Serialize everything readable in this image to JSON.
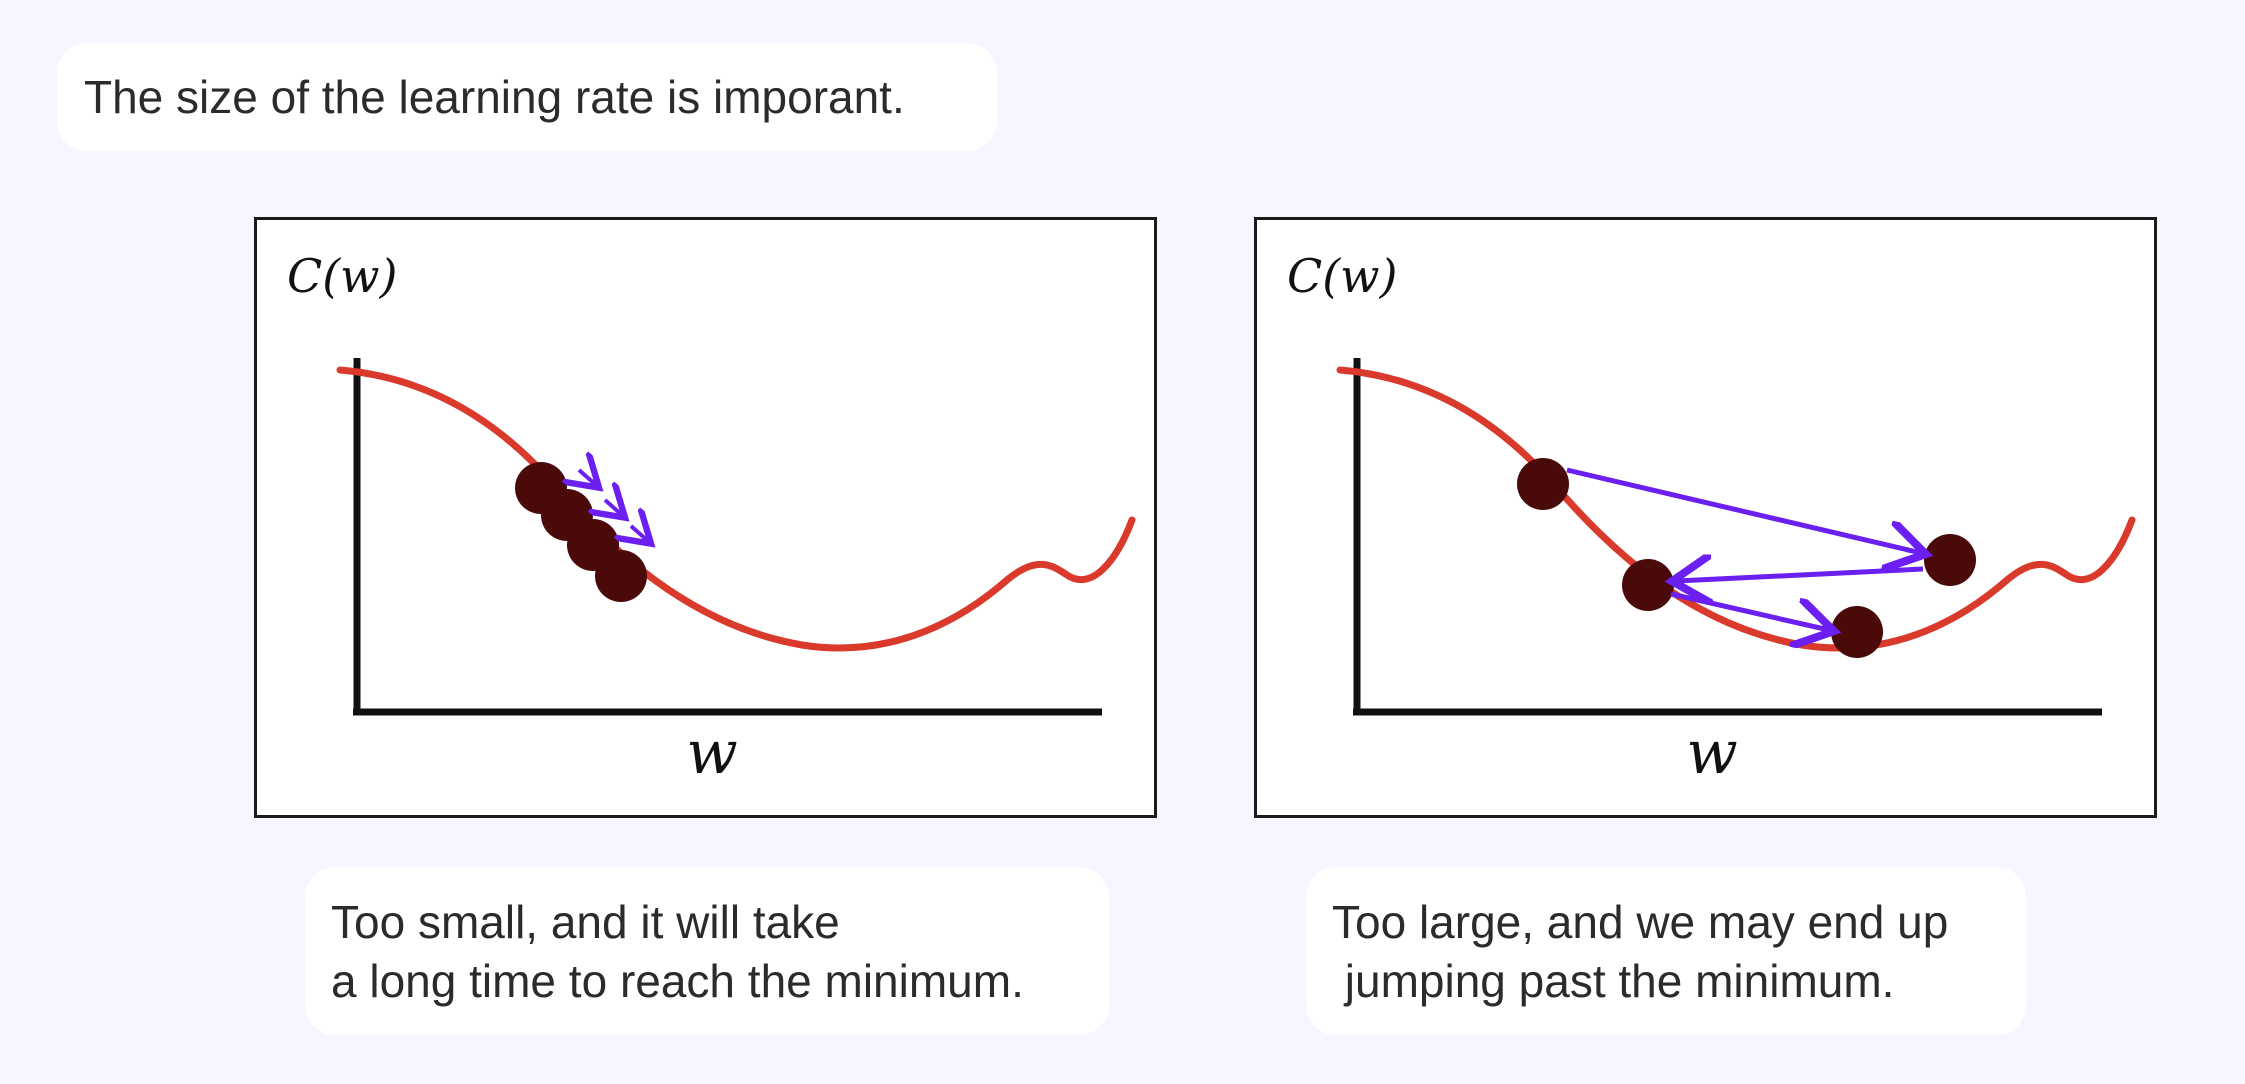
{
  "header": {
    "title": "The size of the learning rate is imporant."
  },
  "panels": [
    {
      "y_label": "C(w)",
      "x_label": "w",
      "caption_line1": "Too small, and it will take",
      "caption_line2": "a long time to reach the minimum."
    },
    {
      "y_label": "C(w)",
      "x_label": "w",
      "caption_line1": "Too large, and we may end up",
      "caption_line2": " jumping past the minimum."
    }
  ],
  "colors": {
    "background": "#f5f6ff",
    "curve": "#d93a2b",
    "point": "#4a0a0a",
    "arrow": "#6b1ff0",
    "axis": "#111111"
  }
}
